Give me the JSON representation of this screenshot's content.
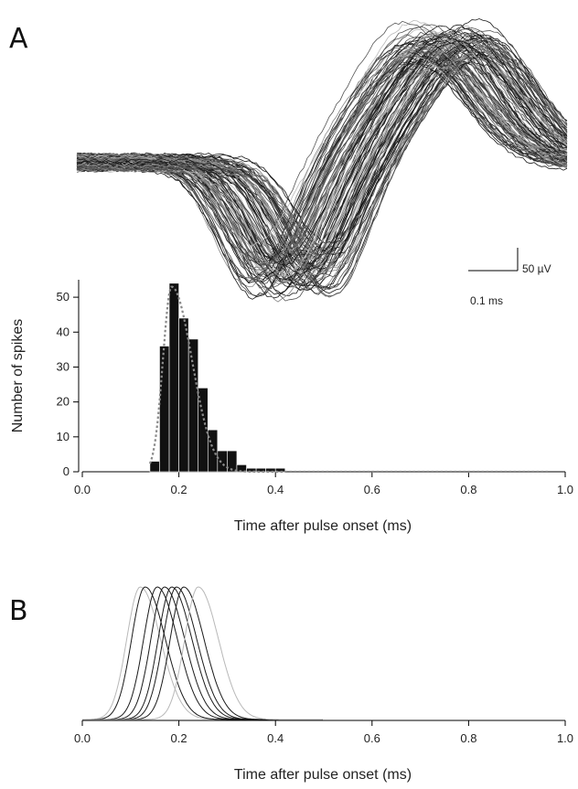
{
  "panels": {
    "a_label": "A",
    "b_label": "B"
  },
  "scale_bar": {
    "voltage_label": "50 µV",
    "time_label": "0.1 ms"
  },
  "colors": {
    "bars": "#111111",
    "fit_curve": "#8a8a8a",
    "trace_dark": "#1a1a1a",
    "trace_light": "#b8b8b8"
  },
  "chart_data": [
    {
      "type": "line",
      "description_panel": "A-top",
      "series_count": 120,
      "grid": false
    },
    {
      "type": "bar",
      "xlabel": "Time after pulse onset (ms)",
      "ylabel": "Number of spikes",
      "xlim": [
        0.0,
        1.0
      ],
      "ylim": [
        0,
        55
      ],
      "xticks": [
        "0.0",
        "0.2",
        "0.4",
        "0.6",
        "0.8",
        "1.0"
      ],
      "yticks": [
        "0",
        "10",
        "20",
        "30",
        "40",
        "50"
      ],
      "bin_width": 0.02,
      "bins": [
        {
          "x": 0.15,
          "value": 3
        },
        {
          "x": 0.17,
          "value": 36
        },
        {
          "x": 0.19,
          "value": 54
        },
        {
          "x": 0.21,
          "value": 44
        },
        {
          "x": 0.23,
          "value": 38
        },
        {
          "x": 0.25,
          "value": 24
        },
        {
          "x": 0.27,
          "value": 12
        },
        {
          "x": 0.29,
          "value": 6
        },
        {
          "x": 0.31,
          "value": 6
        },
        {
          "x": 0.33,
          "value": 2
        },
        {
          "x": 0.35,
          "value": 1
        },
        {
          "x": 0.37,
          "value": 1
        },
        {
          "x": 0.39,
          "value": 1
        },
        {
          "x": 0.41,
          "value": 1
        }
      ],
      "fit": {
        "type": "dotted fit curve",
        "color": "#8a8a8a"
      },
      "grid": false
    },
    {
      "type": "line",
      "description_panel": "B",
      "xlabel": "Time after pulse onset (ms)",
      "xlim": [
        0.0,
        1.0
      ],
      "xticks": [
        "0.0",
        "0.2",
        "0.4",
        "0.6",
        "0.8",
        "1.0"
      ],
      "curve_peaks": [
        0.12,
        0.13,
        0.155,
        0.17,
        0.185,
        0.195,
        0.21,
        0.24
      ],
      "curve_colors": [
        "#b8b8b8",
        "#1a1a1a",
        "#1a1a1a",
        "#1a1a1a",
        "#1a1a1a",
        "#1a1a1a",
        "#1a1a1a",
        "#b8b8b8"
      ],
      "grid": false
    }
  ]
}
